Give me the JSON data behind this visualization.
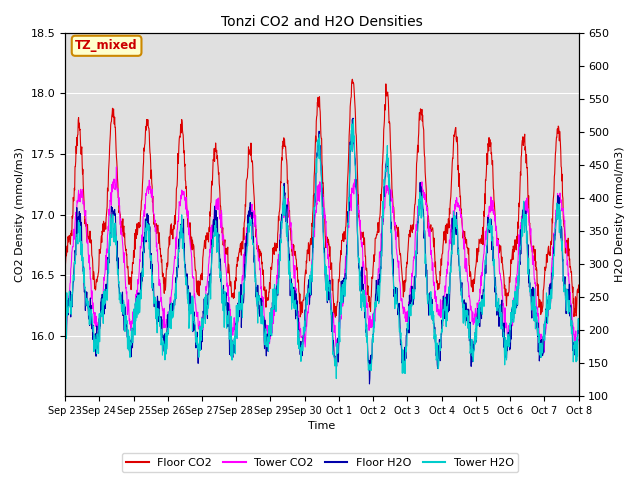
{
  "title": "Tonzi CO2 and H2O Densities",
  "xlabel": "Time",
  "ylabel_left": "CO2 Density (mmol/m3)",
  "ylabel_right": "H2O Density (mmol/m3)",
  "ylim_left": [
    15.5,
    18.5
  ],
  "ylim_right": [
    100,
    650
  ],
  "yticks_left": [
    16.0,
    16.5,
    17.0,
    17.5,
    18.0,
    18.5
  ],
  "yticks_right": [
    100,
    150,
    200,
    250,
    300,
    350,
    400,
    450,
    500,
    550,
    600,
    650
  ],
  "xtick_labels": [
    "Sep 23",
    "Sep 24",
    "Sep 25",
    "Sep 26",
    "Sep 27",
    "Sep 28",
    "Sep 29",
    "Sep 30",
    "Oct 1",
    "Oct 2",
    "Oct 3",
    "Oct 4",
    "Oct 5",
    "Oct 6",
    "Oct 7",
    "Oct 8"
  ],
  "annotation_text": "TZ_mixed",
  "annotation_bg": "#ffffcc",
  "annotation_edge": "#cc8800",
  "annotation_textcolor": "#cc0000",
  "background_color": "#e0e0e0",
  "legend_labels": [
    "Floor CO2",
    "Tower CO2",
    "Floor H2O",
    "Tower H2O"
  ],
  "line_colors": [
    "#dd0000",
    "#ff00ff",
    "#0000aa",
    "#00cccc"
  ],
  "n_days": 15,
  "pts_per_day": 96
}
